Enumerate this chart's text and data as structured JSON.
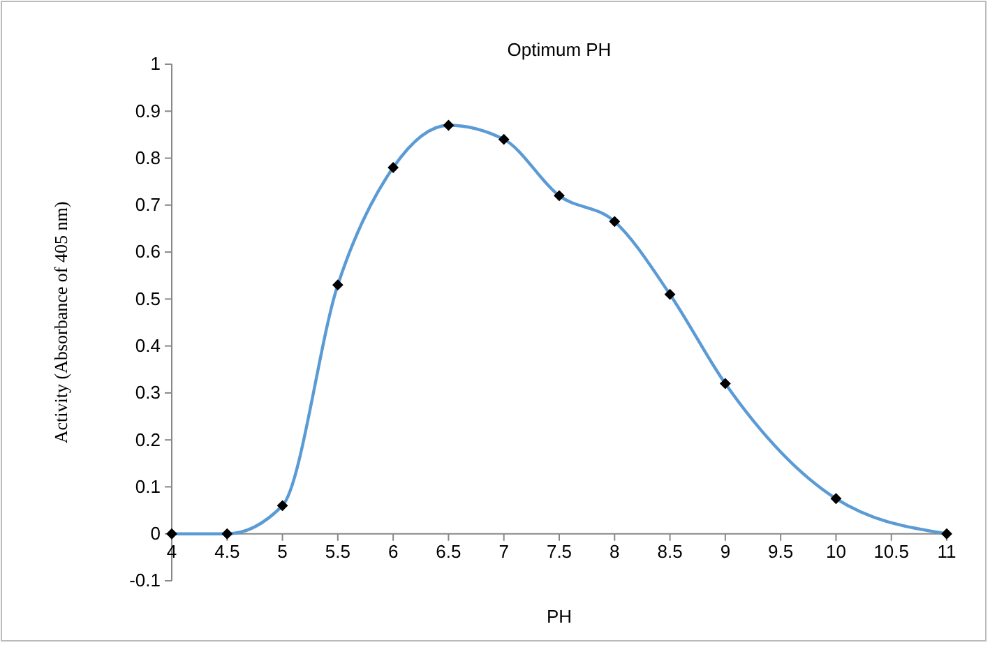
{
  "chart_data": {
    "type": "line",
    "title": "Optimum PH",
    "xlabel": "PH",
    "ylabel": "Activity (Absorbance of 405 nm)",
    "x": [
      4,
      4.5,
      5,
      5.5,
      6,
      6.5,
      7,
      7.5,
      8,
      8.5,
      9,
      10,
      11
    ],
    "series": [
      {
        "color": "#5b9bd5",
        "values": [
          0,
          0,
          0.06,
          0.53,
          0.78,
          0.87,
          0.84,
          0.72,
          0.665,
          0.51,
          0.32,
          0.075,
          0
        ]
      }
    ],
    "xlim": [
      4,
      11
    ],
    "xticks": [
      4,
      4.5,
      5,
      5.5,
      6,
      6.5,
      7,
      7.5,
      8,
      8.5,
      9,
      9.5,
      10,
      10.5,
      11
    ],
    "ylim": [
      -0.1,
      1
    ],
    "yticks": [
      -0.1,
      0,
      0.1,
      0.2,
      0.3,
      0.4,
      0.5,
      0.6,
      0.7,
      0.8,
      0.9,
      1
    ],
    "grid": false,
    "marker": "diamond",
    "line_style": "solid"
  }
}
